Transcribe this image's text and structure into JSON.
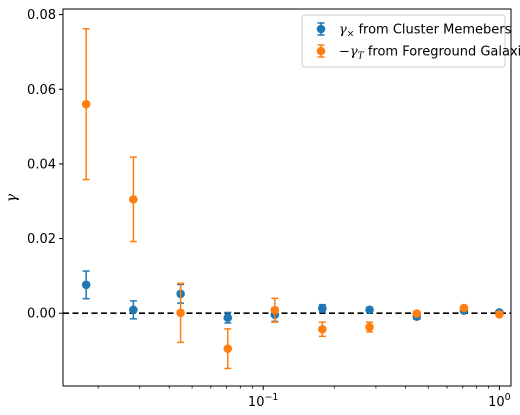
{
  "chart_data": {
    "type": "scatter",
    "title": "",
    "xlabel": "",
    "ylabel": "γ",
    "xscale": "log",
    "xlim": [
      0.0142,
      1.12
    ],
    "ylim": [
      -0.0195,
      0.0815
    ],
    "x_ticks": [
      {
        "value": 0.1,
        "label": "10^-1"
      },
      {
        "value": 1,
        "label": "10^0"
      }
    ],
    "y_ticks": [
      0.0,
      0.02,
      0.04,
      0.06,
      0.08
    ],
    "y_tick_labels": [
      "0.00",
      "0.02",
      "0.04",
      "0.06",
      "0.08"
    ],
    "grid": false,
    "legend_position": "top-right",
    "reference_line": {
      "y": 0,
      "style": "dashed",
      "color": "#000000"
    },
    "series": [
      {
        "name": "γ× from Cluster Memebers",
        "legend_main": "γ",
        "legend_sub": "×",
        "legend_rest": " from Cluster Memebers",
        "color": "#1f77b4",
        "x": [
          0.0178,
          0.0282,
          0.0447,
          0.0708,
          0.112,
          0.178,
          0.282,
          0.447,
          0.708,
          1.0
        ],
        "y": [
          0.0076,
          0.0009,
          0.0052,
          -0.0012,
          -0.0004,
          0.0013,
          0.0009,
          -0.0009,
          0.0007,
          0.0002
        ],
        "yerr": [
          0.0037,
          0.0024,
          0.0025,
          0.0014,
          0.0018,
          0.001,
          0.0007,
          0.0007,
          0.0004,
          0.0004
        ]
      },
      {
        "name": "−γT from Foreground Galaxies",
        "legend_main": "−γ",
        "legend_sub": "T",
        "legend_rest": " from Foreground Galaxies",
        "color": "#ff7f0e",
        "x": [
          0.0178,
          0.0282,
          0.0447,
          0.0708,
          0.112,
          0.178,
          0.282,
          0.447,
          0.708,
          1.0
        ],
        "y": [
          0.056,
          0.0305,
          0.0001,
          -0.0095,
          0.0008,
          -0.0043,
          -0.0037,
          -0.0001,
          0.0014,
          -0.0003
        ],
        "yerr": [
          0.0202,
          0.0113,
          0.0079,
          0.0053,
          0.0032,
          0.0019,
          0.0013,
          0.0006,
          0.0006,
          0.0004
        ]
      }
    ]
  }
}
